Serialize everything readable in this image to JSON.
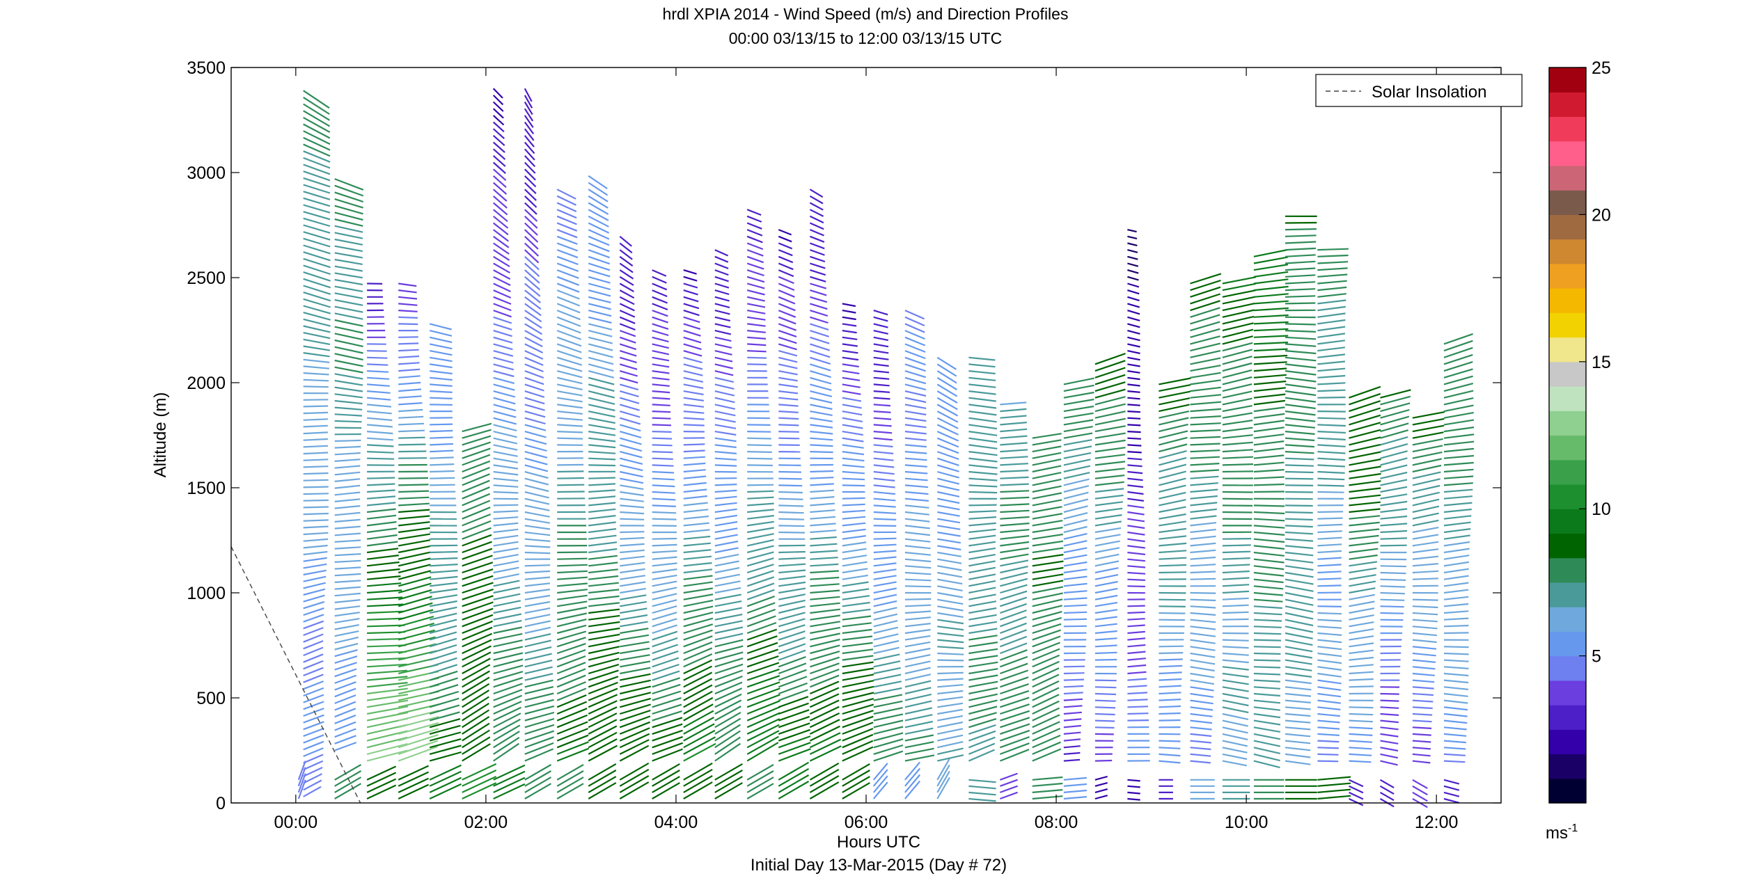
{
  "chart_data": {
    "type": "wind-barb-profile",
    "title_line1": "hrdl XPIA 2014 - Wind Speed (m/s) and Direction Profiles",
    "title_line2": "00:00 03/13/15 to 12:00 03/13/15  UTC",
    "xlabel": "Hours UTC",
    "xlabel2": "Initial Day 13-Mar-2015 (Day # 72)",
    "ylabel": "Altitude (m)",
    "xlim_hours": [
      -0.68,
      12.68
    ],
    "ylim": [
      0,
      3500
    ],
    "x_ticks": [
      {
        "value": 0,
        "label": "00:00"
      },
      {
        "value": 2,
        "label": "02:00"
      },
      {
        "value": 4,
        "label": "04:00"
      },
      {
        "value": 6,
        "label": "06:00"
      },
      {
        "value": 8,
        "label": "08:00"
      },
      {
        "value": 10,
        "label": "10:00"
      },
      {
        "value": 12,
        "label": "12:00"
      }
    ],
    "y_ticks": [
      {
        "value": 0,
        "label": "0"
      },
      {
        "value": 500,
        "label": "500"
      },
      {
        "value": 1000,
        "label": "1000"
      },
      {
        "value": 1500,
        "label": "1500"
      },
      {
        "value": 2000,
        "label": "2000"
      },
      {
        "value": 2500,
        "label": "2500"
      },
      {
        "value": 3000,
        "label": "3000"
      },
      {
        "value": 3500,
        "label": "3500"
      }
    ],
    "legend": {
      "label": "Solar Insolation",
      "placement": "top-right"
    },
    "solar_insolation_line": {
      "hours": [
        -0.68,
        0.68
      ],
      "altitude": [
        1220,
        0
      ]
    },
    "colorbar": {
      "min": 0,
      "max": 25,
      "ticks": [
        {
          "value": 5,
          "label": "5"
        },
        {
          "value": 10,
          "label": "10"
        },
        {
          "value": 15,
          "label": "15"
        },
        {
          "value": 20,
          "label": "20"
        },
        {
          "value": 25,
          "label": "25"
        }
      ],
      "unit_label": "ms",
      "unit_exponent": "-1",
      "colors": [
        "#000033",
        "#1a0066",
        "#3300aa",
        "#4d1fc8",
        "#6b3ee0",
        "#6e7ff0",
        "#6699ee",
        "#6fa8dc",
        "#4a9a9a",
        "#2e8b57",
        "#006400",
        "#0b7a1b",
        "#1e8f2e",
        "#3aa04a",
        "#66bb6a",
        "#8fcf8f",
        "#bfe3bf",
        "#c8c8c8",
        "#f0e68c",
        "#f2d200",
        "#f5b800",
        "#f0a020",
        "#d08830",
        "#a06a40",
        "#7a5a4a",
        "#cc6677",
        "#ff5f8a",
        "#f03c5a",
        "#d01a30",
        "#a00010"
      ]
    },
    "profiles": [
      {
        "hour": 0.05,
        "bottom": 30,
        "top": 3400,
        "speed_low": 4.5,
        "speed_high": 8.0,
        "dir_low": 240,
        "dir_high": 300
      },
      {
        "hour": 0.38,
        "bottom": 250,
        "top": 3000,
        "speed_low": 5.5,
        "speed_high": 8.0,
        "dir_low": 250,
        "dir_high": 290
      },
      {
        "hour": 0.72,
        "bottom": 200,
        "top": 2500,
        "speed_low": 13.0,
        "speed_high": 3.0,
        "dir_low": 260,
        "dir_high": 275
      },
      {
        "hour": 1.05,
        "bottom": 200,
        "top": 2500,
        "speed_low": 13.0,
        "speed_high": 3.5,
        "dir_low": 250,
        "dir_high": 275
      },
      {
        "hour": 1.38,
        "bottom": 200,
        "top": 2280,
        "speed_low": 8.5,
        "speed_high": 5.0,
        "dir_low": 250,
        "dir_high": 280
      },
      {
        "hour": 1.72,
        "bottom": 200,
        "top": 1780,
        "speed_low": 9.0,
        "speed_high": 8.0,
        "dir_low": 240,
        "dir_high": 255
      },
      {
        "hour": 2.05,
        "bottom": 200,
        "top": 3400,
        "speed_low": 8.5,
        "speed_high": 2.5,
        "dir_low": 240,
        "dir_high": 320
      },
      {
        "hour": 2.38,
        "bottom": 200,
        "top": 3400,
        "speed_low": 8.0,
        "speed_high": 2.5,
        "dir_low": 245,
        "dir_high": 330
      },
      {
        "hour": 2.72,
        "bottom": 200,
        "top": 2950,
        "speed_low": 9.0,
        "speed_high": 5.0,
        "dir_low": 245,
        "dir_high": 300
      },
      {
        "hour": 3.05,
        "bottom": 200,
        "top": 3000,
        "speed_low": 9.0,
        "speed_high": 5.0,
        "dir_low": 245,
        "dir_high": 300
      },
      {
        "hour": 3.38,
        "bottom": 200,
        "top": 2700,
        "speed_low": 9.0,
        "speed_high": 2.5,
        "dir_low": 245,
        "dir_high": 305
      },
      {
        "hour": 3.72,
        "bottom": 200,
        "top": 2550,
        "speed_low": 8.5,
        "speed_high": 2.5,
        "dir_low": 245,
        "dir_high": 290
      },
      {
        "hour": 4.05,
        "bottom": 200,
        "top": 2550,
        "speed_low": 10.0,
        "speed_high": 2.5,
        "dir_low": 240,
        "dir_high": 290
      },
      {
        "hour": 4.38,
        "bottom": 200,
        "top": 2650,
        "speed_low": 8.5,
        "speed_high": 2.5,
        "dir_low": 240,
        "dir_high": 295
      },
      {
        "hour": 4.72,
        "bottom": 200,
        "top": 2850,
        "speed_low": 10.0,
        "speed_high": 2.5,
        "dir_low": 240,
        "dir_high": 290
      },
      {
        "hour": 5.05,
        "bottom": 200,
        "top": 2750,
        "speed_low": 9.0,
        "speed_high": 2.5,
        "dir_low": 245,
        "dir_high": 295
      },
      {
        "hour": 5.38,
        "bottom": 200,
        "top": 2950,
        "speed_low": 9.5,
        "speed_high": 2.5,
        "dir_low": 245,
        "dir_high": 300
      },
      {
        "hour": 5.72,
        "bottom": 200,
        "top": 2400,
        "speed_low": 9.5,
        "speed_high": 2.5,
        "dir_low": 250,
        "dir_high": 285
      },
      {
        "hour": 6.05,
        "bottom": 200,
        "top": 2350,
        "speed_low": 8.0,
        "speed_high": 2.5,
        "dir_low": 250,
        "dir_high": 285
      },
      {
        "hour": 6.38,
        "bottom": 200,
        "top": 2350,
        "speed_low": 7.5,
        "speed_high": 4.5,
        "dir_low": 255,
        "dir_high": 290
      },
      {
        "hour": 6.72,
        "bottom": 200,
        "top": 2150,
        "speed_low": 7.0,
        "speed_high": 5.0,
        "dir_low": 260,
        "dir_high": 300
      },
      {
        "hour": 7.05,
        "bottom": 200,
        "top": 2150,
        "speed_low": 7.5,
        "speed_high": 7.0,
        "dir_low": 250,
        "dir_high": 280
      },
      {
        "hour": 7.38,
        "bottom": 200,
        "top": 1900,
        "speed_low": 8.0,
        "speed_high": 7.0,
        "dir_low": 245,
        "dir_high": 270
      },
      {
        "hour": 7.72,
        "bottom": 200,
        "top": 1750,
        "speed_low": 8.0,
        "speed_high": 8.0,
        "dir_low": 245,
        "dir_high": 265
      },
      {
        "hour": 8.05,
        "bottom": 200,
        "top": 2000,
        "speed_low": 3.5,
        "speed_high": 8.0,
        "dir_low": 270,
        "dir_high": 255
      },
      {
        "hour": 8.38,
        "bottom": 200,
        "top": 2100,
        "speed_low": 3.5,
        "speed_high": 9.0,
        "dir_low": 270,
        "dir_high": 255
      },
      {
        "hour": 8.72,
        "bottom": 200,
        "top": 2750,
        "speed_low": 5.0,
        "speed_high": 1.0,
        "dir_low": 265,
        "dir_high": 285
      },
      {
        "hour": 9.05,
        "bottom": 200,
        "top": 2000,
        "speed_low": 5.0,
        "speed_high": 8.5,
        "dir_low": 275,
        "dir_high": 255
      },
      {
        "hour": 9.38,
        "bottom": 200,
        "top": 2500,
        "speed_low": 5.0,
        "speed_high": 9.0,
        "dir_low": 280,
        "dir_high": 255
      },
      {
        "hour": 9.72,
        "bottom": 200,
        "top": 2500,
        "speed_low": 6.0,
        "speed_high": 9.0,
        "dir_low": 280,
        "dir_high": 255
      },
      {
        "hour": 10.05,
        "bottom": 200,
        "top": 2600,
        "speed_low": 6.5,
        "speed_high": 9.5,
        "dir_low": 280,
        "dir_high": 260
      },
      {
        "hour": 10.38,
        "bottom": 200,
        "top": 2800,
        "speed_low": 6.5,
        "speed_high": 8.5,
        "dir_low": 280,
        "dir_high": 270
      },
      {
        "hour": 10.72,
        "bottom": 200,
        "top": 2650,
        "speed_low": 5.0,
        "speed_high": 8.0,
        "dir_low": 275,
        "dir_high": 265
      },
      {
        "hour": 11.05,
        "bottom": 200,
        "top": 1950,
        "speed_low": 5.0,
        "speed_high": 9.5,
        "dir_low": 270,
        "dir_high": 255
      },
      {
        "hour": 11.38,
        "bottom": 200,
        "top": 1950,
        "speed_low": 3.5,
        "speed_high": 8.5,
        "dir_low": 280,
        "dir_high": 255
      },
      {
        "hour": 11.72,
        "bottom": 200,
        "top": 1850,
        "speed_low": 4.0,
        "speed_high": 8.5,
        "dir_low": 280,
        "dir_high": 255
      },
      {
        "hour": 12.05,
        "bottom": 200,
        "top": 2200,
        "speed_low": 5.0,
        "speed_high": 8.5,
        "dir_low": 275,
        "dir_high": 255
      }
    ],
    "near_surface_segments": [
      {
        "hour": 0.0,
        "speed": 4.5,
        "dir": 200
      },
      {
        "hour": 0.38,
        "speed": 8.0,
        "dir": 240
      },
      {
        "hour": 0.72,
        "speed": 8.5,
        "dir": 245
      },
      {
        "hour": 1.05,
        "speed": 9.0,
        "dir": 245
      },
      {
        "hour": 1.38,
        "speed": 9.5,
        "dir": 245
      },
      {
        "hour": 1.72,
        "speed": 10.5,
        "dir": 245
      },
      {
        "hour": 2.05,
        "speed": 9.5,
        "dir": 245
      },
      {
        "hour": 2.38,
        "speed": 8.0,
        "dir": 240
      },
      {
        "hour": 2.72,
        "speed": 8.0,
        "dir": 240
      },
      {
        "hour": 3.05,
        "speed": 8.5,
        "dir": 240
      },
      {
        "hour": 3.38,
        "speed": 9.0,
        "dir": 240
      },
      {
        "hour": 3.72,
        "speed": 8.5,
        "dir": 240
      },
      {
        "hour": 4.05,
        "speed": 9.0,
        "dir": 240
      },
      {
        "hour": 4.38,
        "speed": 8.5,
        "dir": 240
      },
      {
        "hour": 4.72,
        "speed": 8.0,
        "dir": 240
      },
      {
        "hour": 5.05,
        "speed": 9.5,
        "dir": 240
      },
      {
        "hour": 5.38,
        "speed": 9.0,
        "dir": 240
      },
      {
        "hour": 5.72,
        "speed": 8.5,
        "dir": 240
      },
      {
        "hour": 6.05,
        "speed": 5.0,
        "dir": 220
      },
      {
        "hour": 6.38,
        "speed": 5.5,
        "dir": 220
      },
      {
        "hour": 6.72,
        "speed": 6.0,
        "dir": 210
      },
      {
        "hour": 7.05,
        "speed": 7.0,
        "dir": 275
      },
      {
        "hour": 7.38,
        "speed": 4.0,
        "dir": 250
      },
      {
        "hour": 7.72,
        "speed": 8.0,
        "dir": 265
      },
      {
        "hour": 8.05,
        "speed": 5.5,
        "dir": 265
      },
      {
        "hour": 8.38,
        "speed": 2.0,
        "dir": 255
      },
      {
        "hour": 8.72,
        "speed": 2.0,
        "dir": 275
      },
      {
        "hour": 9.05,
        "speed": 2.5,
        "dir": 270
      },
      {
        "hour": 9.38,
        "speed": 6.0,
        "dir": 270
      },
      {
        "hour": 9.72,
        "speed": 7.0,
        "dir": 270
      },
      {
        "hour": 10.05,
        "speed": 8.0,
        "dir": 270
      },
      {
        "hour": 10.38,
        "speed": 8.5,
        "dir": 270
      },
      {
        "hour": 10.72,
        "speed": 9.0,
        "dir": 265
      },
      {
        "hour": 11.05,
        "speed": 3.0,
        "dir": 295
      },
      {
        "hour": 11.38,
        "speed": 3.0,
        "dir": 300
      },
      {
        "hour": 11.72,
        "speed": 3.5,
        "dir": 300
      },
      {
        "hour": 12.05,
        "speed": 3.0,
        "dir": 285
      }
    ]
  }
}
